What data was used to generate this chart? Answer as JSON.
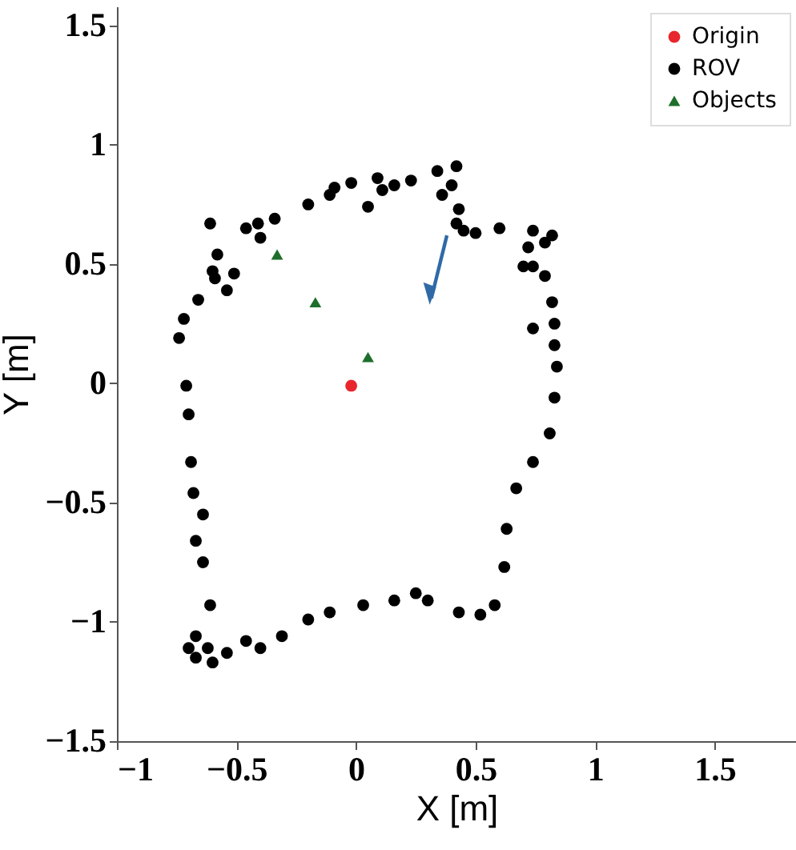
{
  "chart_data": {
    "type": "scatter",
    "xlabel": "X [m]",
    "ylabel": "Y [m]",
    "xlim": [
      -1,
      1.84
    ],
    "ylim": [
      -1.5,
      1.58
    ],
    "xticks": [
      -1,
      -0.5,
      0,
      0.5,
      1,
      1.5
    ],
    "yticks": [
      -1.5,
      -1,
      -0.5,
      0,
      0.5,
      1,
      1.5
    ],
    "grid": false,
    "legend": "top right",
    "series": [
      {
        "name": "Origin",
        "color": "#e8262d",
        "marker": "circle",
        "x": [
          -0.02
        ],
        "values": [
          -0.01
        ]
      },
      {
        "name": "ROV",
        "color": "#000000",
        "marker": "circle",
        "x": [
          -0.71,
          -0.74,
          -0.72,
          -0.66,
          -0.59,
          -0.54,
          -0.6,
          -0.61,
          -0.58,
          -0.51,
          -0.46,
          -0.41,
          -0.4,
          -0.34,
          -0.2,
          -0.11,
          -0.09,
          -0.02,
          0.09,
          0.05,
          0.11,
          0.16,
          0.23,
          0.34,
          0.42,
          0.4,
          0.36,
          0.43,
          0.42,
          0.45,
          0.5,
          0.6,
          0.74,
          0.82,
          0.79,
          0.72,
          0.7,
          0.74,
          0.79,
          0.82,
          0.83,
          0.74,
          0.83,
          0.84,
          0.83,
          0.81,
          0.74,
          0.67,
          0.63,
          0.62,
          0.58,
          0.52,
          0.43,
          0.3,
          0.25,
          0.16,
          0.03,
          -0.11,
          -0.2,
          -0.31,
          -0.4,
          -0.46,
          -0.54,
          -0.6,
          -0.67,
          -0.7,
          -0.67,
          -0.62,
          -0.61,
          -0.64,
          -0.67,
          -0.64,
          -0.68,
          -0.69,
          -0.7
        ],
        "values": [
          -0.01,
          0.19,
          0.27,
          0.35,
          0.44,
          0.39,
          0.47,
          0.67,
          0.54,
          0.46,
          0.65,
          0.67,
          0.61,
          0.69,
          0.75,
          0.79,
          0.82,
          0.84,
          0.86,
          0.74,
          0.81,
          0.83,
          0.85,
          0.89,
          0.91,
          0.83,
          0.79,
          0.73,
          0.67,
          0.64,
          0.63,
          0.65,
          0.64,
          0.62,
          0.59,
          0.57,
          0.49,
          0.49,
          0.45,
          0.34,
          0.25,
          0.23,
          0.16,
          0.07,
          -0.06,
          -0.21,
          -0.33,
          -0.44,
          -0.61,
          -0.77,
          -0.93,
          -0.97,
          -0.96,
          -0.91,
          -0.88,
          -0.91,
          -0.93,
          -0.96,
          -0.99,
          -1.06,
          -1.11,
          -1.08,
          -1.13,
          -1.17,
          -1.15,
          -1.11,
          -1.06,
          -1.11,
          -0.93,
          -0.75,
          -0.66,
          -0.55,
          -0.46,
          -0.33,
          -0.13
        ]
      },
      {
        "name": "Objects",
        "color": "#1f6e2c",
        "marker": "triangle",
        "x": [
          -0.33,
          -0.17,
          0.05
        ],
        "values": [
          0.54,
          0.34,
          0.11
        ]
      }
    ]
  }
}
